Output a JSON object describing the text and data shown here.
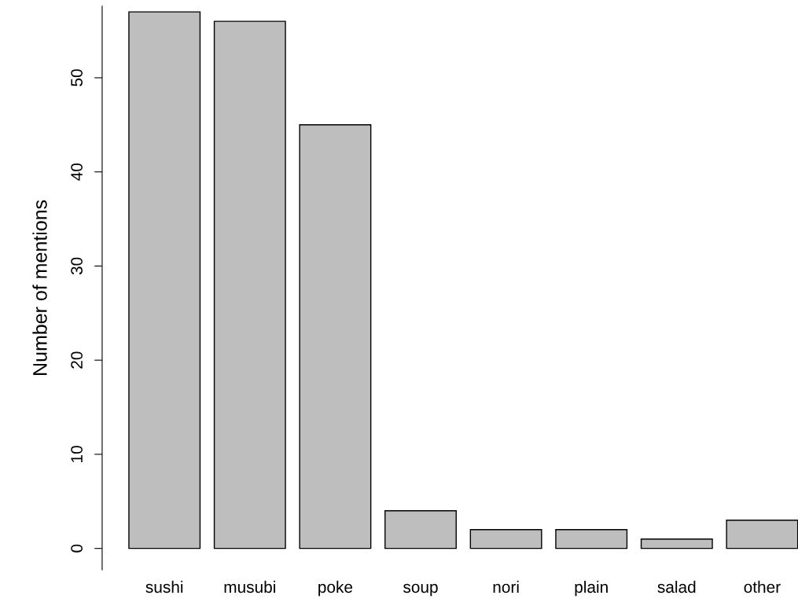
{
  "chart_data": {
    "type": "bar",
    "ylabel": "Number of mentions",
    "categories": [
      "sushi",
      "musubi",
      "poke",
      "soup",
      "nori",
      "plain",
      "salad",
      "other"
    ],
    "values": [
      57,
      56,
      45,
      4,
      2,
      2,
      1,
      3
    ],
    "color": "#bebebe",
    "ylim": [
      -2.28,
      57.6
    ],
    "yticks": [
      0,
      10,
      20,
      30,
      40,
      50
    ],
    "grid": false,
    "legend": false
  }
}
